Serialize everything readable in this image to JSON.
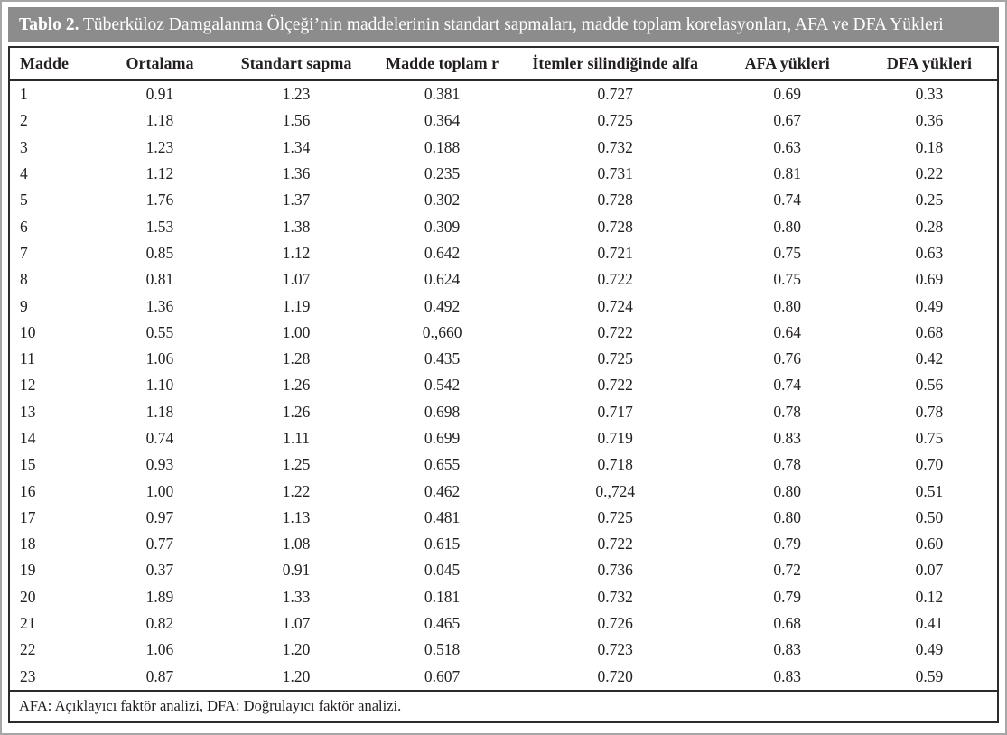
{
  "table": {
    "title": {
      "label": "Tablo 2.",
      "text": " Tüberküloz Damgalanma Ölçeği’nin maddelerinin standart sapmaları, madde toplam korelasyonları, AFA ve DFA Yükleri"
    },
    "columns": [
      "Madde",
      "Ortalama",
      "Standart sapma",
      "Madde toplam r",
      "İtemler silindiğinde alfa",
      "AFA yükleri",
      "DFA yükleri"
    ],
    "rows": [
      [
        "1",
        "0.91",
        "1.23",
        "0.381",
        "0.727",
        "0.69",
        "0.33"
      ],
      [
        "2",
        "1.18",
        "1.56",
        "0.364",
        "0.725",
        "0.67",
        "0.36"
      ],
      [
        "3",
        "1.23",
        "1.34",
        "0.188",
        "0.732",
        "0.63",
        "0.18"
      ],
      [
        "4",
        "1.12",
        "1.36",
        "0.235",
        "0.731",
        "0.81",
        "0.22"
      ],
      [
        "5",
        "1.76",
        "1.37",
        "0.302",
        "0.728",
        "0.74",
        "0.25"
      ],
      [
        "6",
        "1.53",
        "1.38",
        "0.309",
        "0.728",
        "0.80",
        "0.28"
      ],
      [
        "7",
        "0.85",
        "1.12",
        "0.642",
        "0.721",
        "0.75",
        "0.63"
      ],
      [
        "8",
        "0.81",
        "1.07",
        "0.624",
        "0.722",
        "0.75",
        "0.69"
      ],
      [
        "9",
        "1.36",
        "1.19",
        "0.492",
        "0.724",
        "0.80",
        "0.49"
      ],
      [
        "10",
        "0.55",
        "1.00",
        "0.,660",
        "0.722",
        "0.64",
        "0.68"
      ],
      [
        "11",
        "1.06",
        "1.28",
        "0.435",
        "0.725",
        "0.76",
        "0.42"
      ],
      [
        "12",
        "1.10",
        "1.26",
        "0.542",
        "0.722",
        "0.74",
        "0.56"
      ],
      [
        "13",
        "1.18",
        "1.26",
        "0.698",
        "0.717",
        "0.78",
        "0.78"
      ],
      [
        "14",
        "0.74",
        "1.11",
        "0.699",
        "0.719",
        "0.83",
        "0.75"
      ],
      [
        "15",
        "0.93",
        "1.25",
        "0.655",
        "0.718",
        "0.78",
        "0.70"
      ],
      [
        "16",
        "1.00",
        "1.22",
        "0.462",
        "0.,724",
        "0.80",
        "0.51"
      ],
      [
        "17",
        "0.97",
        "1.13",
        "0.481",
        "0.725",
        "0.80",
        "0.50"
      ],
      [
        "18",
        "0.77",
        "1.08",
        "0.615",
        "0.722",
        "0.79",
        "0.60"
      ],
      [
        "19",
        "0.37",
        "0.91",
        "0.045",
        "0.736",
        "0.72",
        "0.07"
      ],
      [
        "20",
        "1.89",
        "1.33",
        "0.181",
        "0.732",
        "0.79",
        "0.12"
      ],
      [
        "21",
        "0.82",
        "1.07",
        "0.465",
        "0.726",
        "0.68",
        "0.41"
      ],
      [
        "22",
        "1.06",
        "1.20",
        "0.518",
        "0.723",
        "0.83",
        "0.49"
      ],
      [
        "23",
        "0.87",
        "1.20",
        "0.607",
        "0.720",
        "0.83",
        "0.59"
      ]
    ],
    "footnote": "AFA: Açıklayıcı faktör analizi, DFA: Doğrulayıcı faktör analizi.",
    "colors": {
      "title_bar_bg": "#8c8c8c",
      "title_text": "#ffffff",
      "body_text": "#231f20",
      "table_border": "#2b2b2b",
      "outer_frame": "#a6a6a6"
    }
  },
  "chart_data": {
    "type": "table",
    "title": "Tablo 2. Tüberküloz Damgalanma Ölçeği’nin maddelerinin standart sapmaları, madde toplam korelasyonları, AFA ve DFA Yükleri",
    "columns": [
      "Madde",
      "Ortalama",
      "Standart sapma",
      "Madde toplam r",
      "İtemler silindiğinde alfa",
      "AFA yükleri",
      "DFA yükleri"
    ]
  }
}
